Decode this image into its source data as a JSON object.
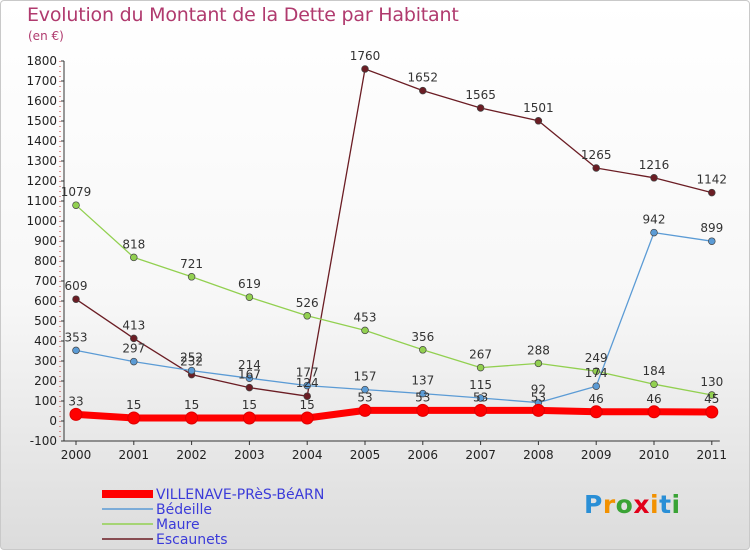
{
  "title": "Evolution du Montant de la Dette par Habitant",
  "subtitle": "(en €)",
  "logo": {
    "text": "Proxiti",
    "letters": [
      "P",
      "r",
      "o",
      "x",
      "i",
      "t",
      "i"
    ],
    "colors": [
      "#2a8fd6",
      "#f29100",
      "#3aa335",
      "#e2001a",
      "#f29100",
      "#2a8fd6",
      "#3aa335"
    ]
  },
  "chart_data": {
    "type": "line",
    "x": [
      "2000",
      "2001",
      "2002",
      "2003",
      "2004",
      "2005",
      "2006",
      "2007",
      "2008",
      "2009",
      "2010",
      "2011"
    ],
    "ylim": [
      -100,
      1800
    ],
    "yticks": [
      -100,
      0,
      100,
      200,
      300,
      400,
      500,
      600,
      700,
      800,
      900,
      1000,
      1100,
      1200,
      1300,
      1400,
      1500,
      1600,
      1700,
      1800
    ],
    "grid": false,
    "legend_position": "bottom-left",
    "series": [
      {
        "name": "VILLENAVE-PRèS-BéARN",
        "color": "#ff0000",
        "values": [
          33,
          15,
          15,
          15,
          15,
          53,
          53,
          53,
          53,
          46,
          46,
          45
        ]
      },
      {
        "name": "Bédeille",
        "color": "#5b9bd5",
        "values": [
          353,
          297,
          252,
          214,
          177,
          157,
          137,
          115,
          92,
          174,
          942,
          899
        ]
      },
      {
        "name": "Maure",
        "color": "#92d050",
        "values": [
          1079,
          818,
          721,
          619,
          526,
          453,
          356,
          267,
          288,
          249,
          184,
          130
        ]
      },
      {
        "name": "Escaunets",
        "color": "#6b1d24",
        "values": [
          609,
          413,
          232,
          167,
          124,
          1760,
          1652,
          1565,
          1501,
          1265,
          1216,
          1142
        ]
      }
    ]
  }
}
